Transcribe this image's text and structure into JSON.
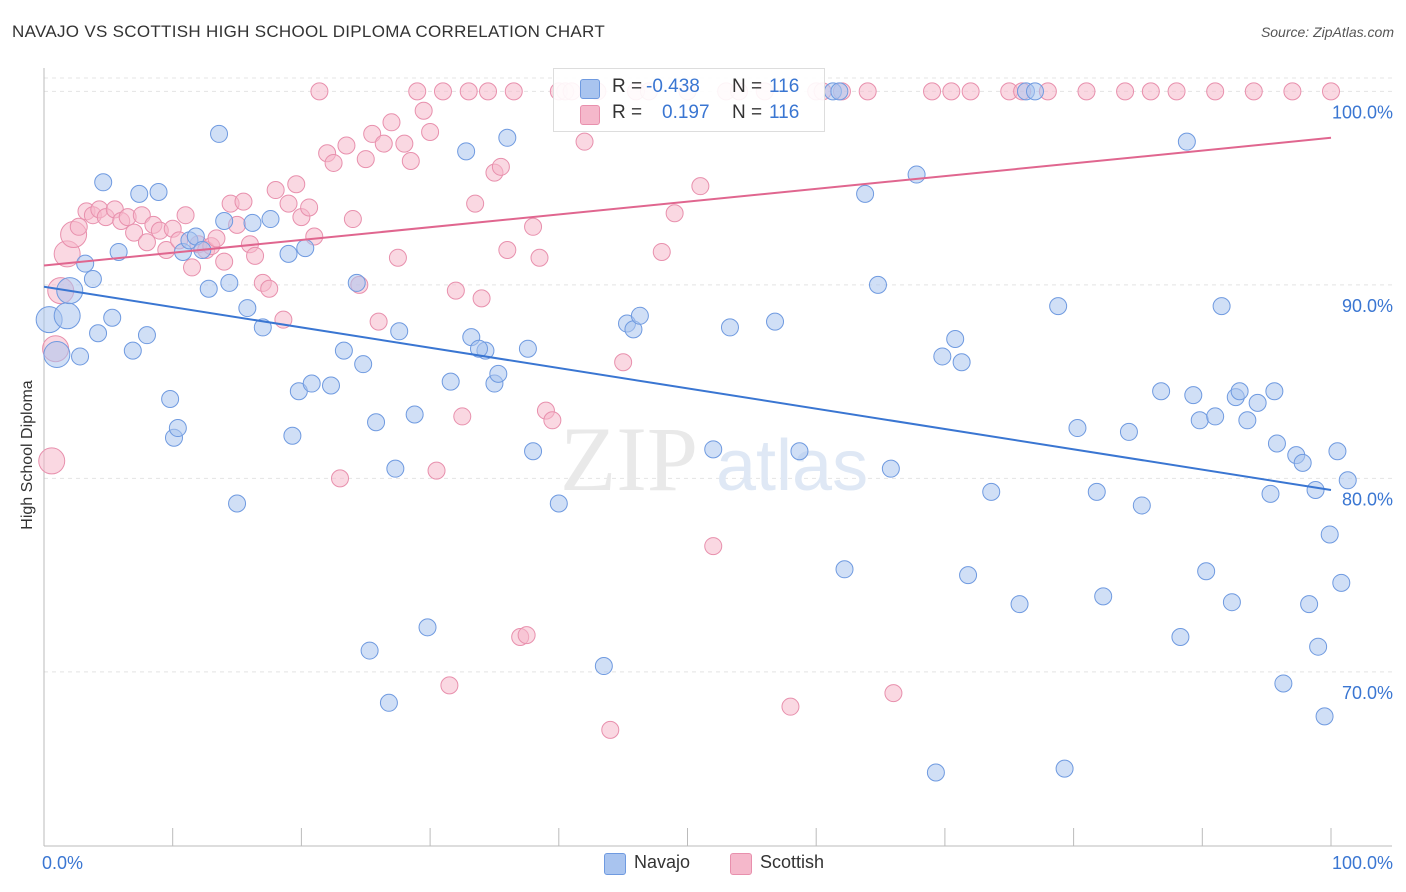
{
  "title": "NAVAJO VS SCOTTISH HIGH SCHOOL DIPLOMA CORRELATION CHART",
  "source": "Source: ZipAtlas.com",
  "watermark": {
    "zip": "ZIP",
    "atlas": "atlas"
  },
  "legend_stats": [
    {
      "r_label": "R =",
      "r_value": "-0.438",
      "n_label": "N =",
      "n_value": "116",
      "color": "#a9c4ef"
    },
    {
      "r_label": "R =",
      "r_value": "0.197",
      "n_label": "N =",
      "n_value": "116",
      "color": "#f5b8cb"
    }
  ],
  "colors": {
    "navajo_fill": "#a9c4ef",
    "navajo_stroke": "#6f9ae0",
    "navajo_line": "#3a76d2",
    "scottish_fill": "#f5b8cb",
    "scottish_stroke": "#e890ad",
    "scottish_line": "#e0668f",
    "tick_label": "#3a76d2",
    "grid": "#e4e4e4"
  },
  "chart_data": {
    "type": "scatter",
    "title": "NAVAJO VS SCOTTISH HIGH SCHOOL DIPLOMA CORRELATION CHART",
    "xlabel": "",
    "ylabel": "High School Diploma",
    "xlim": [
      0,
      100
    ],
    "ylim": [
      61,
      101
    ],
    "x_tick_labels": [
      "0.0%",
      "100.0%"
    ],
    "y_ticks": [
      {
        "value": 100,
        "label": "100.0%"
      },
      {
        "value": 90,
        "label": "90.0%"
      },
      {
        "value": 80,
        "label": "80.0%"
      },
      {
        "value": 70,
        "label": "70.0%"
      }
    ],
    "grid": true,
    "legend": "bottom-center",
    "series": [
      {
        "name": "Navajo",
        "trend": {
          "x": [
            0,
            100
          ],
          "y": [
            89.9,
            79.4
          ]
        },
        "points": [
          [
            0.4,
            88.2
          ],
          [
            1.0,
            86.4
          ],
          [
            1.8,
            88.4
          ],
          [
            2.0,
            89.7
          ],
          [
            2.8,
            86.3
          ],
          [
            3.2,
            91.1
          ],
          [
            3.8,
            90.3
          ],
          [
            4.2,
            87.5
          ],
          [
            4.6,
            95.3
          ],
          [
            5.3,
            88.3
          ],
          [
            5.8,
            91.7
          ],
          [
            6.9,
            86.6
          ],
          [
            7.4,
            94.7
          ],
          [
            8.0,
            87.4
          ],
          [
            8.9,
            94.8
          ],
          [
            9.8,
            84.1
          ],
          [
            10.1,
            82.1
          ],
          [
            10.4,
            82.6
          ],
          [
            10.8,
            91.7
          ],
          [
            11.3,
            92.3
          ],
          [
            11.8,
            92.5
          ],
          [
            12.3,
            91.8
          ],
          [
            12.8,
            89.8
          ],
          [
            13.6,
            97.8
          ],
          [
            14.0,
            93.3
          ],
          [
            14.4,
            90.1
          ],
          [
            15.0,
            78.7
          ],
          [
            15.8,
            88.8
          ],
          [
            16.2,
            93.2
          ],
          [
            17.0,
            87.8
          ],
          [
            17.6,
            93.4
          ],
          [
            19.0,
            91.6
          ],
          [
            19.3,
            82.2
          ],
          [
            19.8,
            84.5
          ],
          [
            20.3,
            91.9
          ],
          [
            20.8,
            84.9
          ],
          [
            22.3,
            84.8
          ],
          [
            23.3,
            86.6
          ],
          [
            24.3,
            90.1
          ],
          [
            24.8,
            85.9
          ],
          [
            25.3,
            71.1
          ],
          [
            25.8,
            82.9
          ],
          [
            26.8,
            68.4
          ],
          [
            27.3,
            80.5
          ],
          [
            27.6,
            87.6
          ],
          [
            28.8,
            83.3
          ],
          [
            29.8,
            72.3
          ],
          [
            31.6,
            85.0
          ],
          [
            32.8,
            96.9
          ],
          [
            33.2,
            87.3
          ],
          [
            34.3,
            86.6
          ],
          [
            35.0,
            84.9
          ],
          [
            35.3,
            85.4
          ],
          [
            36.0,
            97.6
          ],
          [
            37.6,
            86.7
          ],
          [
            38.0,
            81.4
          ],
          [
            40.0,
            78.7
          ],
          [
            43.5,
            70.3
          ],
          [
            45.3,
            88.0
          ],
          [
            45.8,
            87.7
          ],
          [
            46.3,
            88.4
          ],
          [
            52.0,
            81.5
          ],
          [
            53.3,
            87.8
          ],
          [
            56.8,
            88.1
          ],
          [
            58.7,
            81.4
          ],
          [
            61.3,
            100.0
          ],
          [
            61.8,
            100.0
          ],
          [
            62.2,
            75.3
          ],
          [
            63.8,
            94.7
          ],
          [
            64.8,
            90.0
          ],
          [
            65.8,
            80.5
          ],
          [
            67.8,
            95.7
          ],
          [
            69.3,
            64.8
          ],
          [
            69.8,
            86.3
          ],
          [
            70.8,
            87.2
          ],
          [
            71.3,
            86.0
          ],
          [
            71.8,
            75.0
          ],
          [
            73.6,
            79.3
          ],
          [
            75.8,
            73.5
          ],
          [
            76.3,
            100.0
          ],
          [
            77.0,
            100.0
          ],
          [
            78.8,
            88.9
          ],
          [
            79.3,
            65.0
          ],
          [
            80.3,
            82.6
          ],
          [
            81.8,
            79.3
          ],
          [
            82.3,
            73.9
          ],
          [
            84.3,
            82.4
          ],
          [
            85.3,
            78.6
          ],
          [
            86.8,
            84.5
          ],
          [
            88.3,
            71.8
          ],
          [
            88.8,
            97.4
          ],
          [
            89.3,
            84.3
          ],
          [
            89.8,
            83.0
          ],
          [
            90.3,
            75.2
          ],
          [
            91.0,
            83.2
          ],
          [
            91.5,
            88.9
          ],
          [
            92.3,
            73.6
          ],
          [
            92.6,
            84.2
          ],
          [
            92.9,
            84.5
          ],
          [
            93.5,
            83.0
          ],
          [
            94.3,
            83.9
          ],
          [
            95.3,
            79.2
          ],
          [
            95.6,
            84.5
          ],
          [
            95.8,
            81.8
          ],
          [
            96.3,
            69.4
          ],
          [
            97.3,
            81.2
          ],
          [
            97.8,
            80.8
          ],
          [
            98.3,
            73.5
          ],
          [
            98.8,
            79.4
          ],
          [
            99.0,
            71.3
          ],
          [
            99.5,
            67.7
          ],
          [
            99.9,
            77.1
          ],
          [
            100.5,
            81.4
          ],
          [
            100.8,
            74.6
          ],
          [
            101.3,
            79.9
          ],
          [
            33.8,
            86.7
          ]
        ]
      },
      {
        "name": "Scottish",
        "trend": {
          "x": [
            0,
            100
          ],
          "y": [
            91.0,
            97.6
          ]
        },
        "points": [
          [
            0.6,
            80.9
          ],
          [
            0.9,
            86.7
          ],
          [
            1.3,
            89.7
          ],
          [
            1.8,
            91.6
          ],
          [
            2.3,
            92.6
          ],
          [
            2.7,
            93.0
          ],
          [
            3.3,
            93.8
          ],
          [
            3.8,
            93.6
          ],
          [
            4.3,
            93.9
          ],
          [
            4.8,
            93.5
          ],
          [
            5.5,
            93.9
          ],
          [
            6.0,
            93.3
          ],
          [
            6.5,
            93.5
          ],
          [
            7.0,
            92.7
          ],
          [
            7.6,
            93.6
          ],
          [
            8.0,
            92.2
          ],
          [
            8.5,
            93.1
          ],
          [
            9.0,
            92.8
          ],
          [
            9.5,
            91.8
          ],
          [
            10.0,
            92.9
          ],
          [
            10.5,
            92.3
          ],
          [
            11.0,
            93.6
          ],
          [
            11.5,
            90.9
          ],
          [
            12.0,
            92.1
          ],
          [
            12.6,
            91.8
          ],
          [
            13.0,
            92.0
          ],
          [
            13.4,
            92.4
          ],
          [
            14.0,
            91.2
          ],
          [
            14.5,
            94.2
          ],
          [
            15.0,
            93.1
          ],
          [
            15.5,
            94.3
          ],
          [
            16.0,
            92.1
          ],
          [
            16.4,
            91.5
          ],
          [
            17.0,
            90.1
          ],
          [
            17.5,
            89.8
          ],
          [
            18.0,
            94.9
          ],
          [
            18.6,
            88.2
          ],
          [
            19.0,
            94.2
          ],
          [
            19.6,
            95.2
          ],
          [
            20.0,
            93.5
          ],
          [
            20.6,
            94.0
          ],
          [
            21.0,
            92.5
          ],
          [
            21.4,
            100.0
          ],
          [
            22.0,
            96.8
          ],
          [
            22.5,
            96.3
          ],
          [
            23.0,
            80.0
          ],
          [
            23.5,
            97.2
          ],
          [
            24.0,
            93.4
          ],
          [
            24.5,
            90.0
          ],
          [
            25.0,
            96.5
          ],
          [
            25.5,
            97.8
          ],
          [
            26.0,
            88.1
          ],
          [
            26.4,
            97.3
          ],
          [
            27.0,
            98.4
          ],
          [
            27.5,
            91.4
          ],
          [
            28.0,
            97.3
          ],
          [
            28.5,
            96.4
          ],
          [
            29.0,
            100.0
          ],
          [
            29.5,
            99.0
          ],
          [
            30.0,
            97.9
          ],
          [
            30.5,
            80.4
          ],
          [
            31.0,
            100.0
          ],
          [
            31.5,
            69.3
          ],
          [
            32.0,
            89.7
          ],
          [
            32.5,
            83.2
          ],
          [
            33.0,
            100.0
          ],
          [
            33.5,
            94.2
          ],
          [
            34.0,
            89.3
          ],
          [
            34.5,
            100.0
          ],
          [
            35.0,
            95.8
          ],
          [
            35.5,
            96.1
          ],
          [
            36.0,
            91.8
          ],
          [
            36.5,
            100.0
          ],
          [
            37.0,
            71.8
          ],
          [
            37.5,
            71.9
          ],
          [
            38.0,
            93.0
          ],
          [
            38.5,
            91.4
          ],
          [
            39.0,
            83.5
          ],
          [
            39.5,
            83.0
          ],
          [
            40.0,
            100.0
          ],
          [
            40.5,
            100.0
          ],
          [
            41.0,
            100.0
          ],
          [
            42.0,
            97.4
          ],
          [
            43.0,
            100.0
          ],
          [
            44.0,
            67.0
          ],
          [
            45.0,
            86.0
          ],
          [
            46.0,
            100.0
          ],
          [
            47.0,
            100.0
          ],
          [
            48.0,
            91.7
          ],
          [
            49.0,
            93.7
          ],
          [
            50.0,
            100.0
          ],
          [
            51.0,
            95.1
          ],
          [
            52.0,
            76.5
          ],
          [
            53.0,
            100.0
          ],
          [
            54.0,
            100.0
          ],
          [
            56.0,
            100.0
          ],
          [
            58.0,
            68.2
          ],
          [
            60.0,
            100.0
          ],
          [
            62.0,
            100.0
          ],
          [
            64.0,
            100.0
          ],
          [
            66.0,
            68.9
          ],
          [
            69.0,
            100.0
          ],
          [
            72.0,
            100.0
          ],
          [
            75.0,
            100.0
          ],
          [
            78.0,
            100.0
          ],
          [
            81.0,
            100.0
          ],
          [
            84.0,
            100.0
          ],
          [
            86.0,
            100.0
          ],
          [
            88.0,
            100.0
          ],
          [
            91.0,
            100.0
          ],
          [
            94.0,
            100.0
          ],
          [
            97.0,
            100.0
          ],
          [
            100.0,
            100.0
          ],
          [
            60.5,
            100.0
          ],
          [
            70.5,
            100.0
          ],
          [
            76.0,
            100.0
          ]
        ]
      }
    ]
  }
}
